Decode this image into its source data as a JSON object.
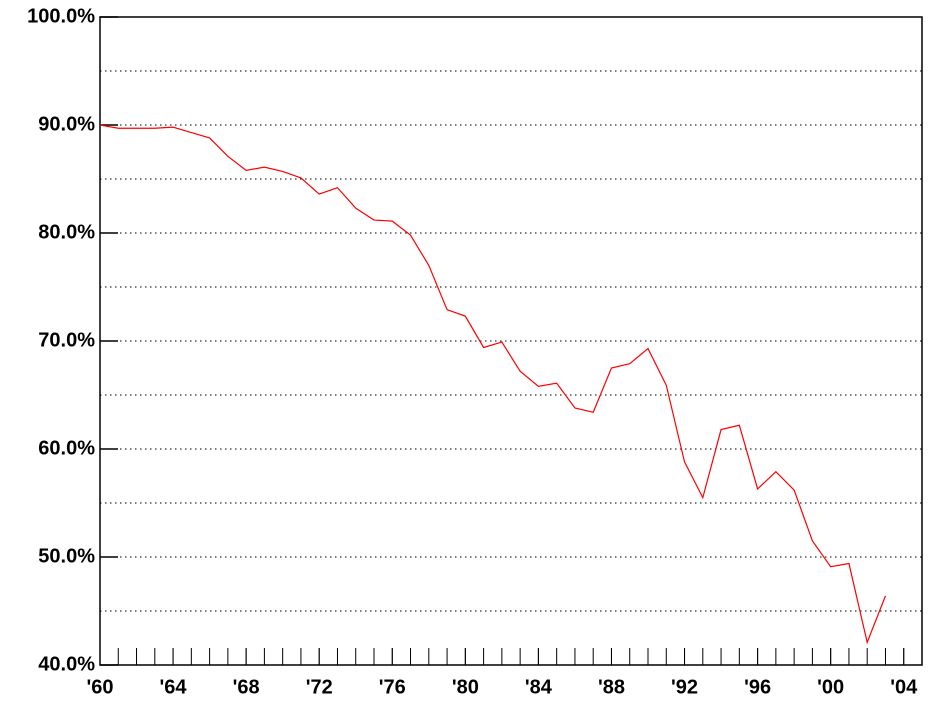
{
  "chart_data": {
    "type": "line",
    "color": "#ff0000",
    "x": [
      1960,
      1961,
      1962,
      1963,
      1964,
      1965,
      1966,
      1967,
      1968,
      1969,
      1970,
      1971,
      1972,
      1973,
      1974,
      1975,
      1976,
      1977,
      1978,
      1979,
      1980,
      1981,
      1982,
      1983,
      1984,
      1985,
      1986,
      1987,
      1988,
      1989,
      1990,
      1991,
      1992,
      1993,
      1994,
      1995,
      1996,
      1997,
      1998,
      1999,
      2000,
      2001,
      2002,
      2003
    ],
    "values": [
      90.0,
      89.7,
      89.7,
      89.7,
      89.8,
      89.3,
      88.8,
      87.1,
      85.8,
      86.1,
      85.7,
      85.1,
      83.6,
      84.2,
      82.3,
      81.2,
      81.1,
      79.8,
      77.0,
      72.9,
      72.3,
      69.4,
      69.9,
      67.2,
      65.8,
      66.1,
      63.8,
      63.4,
      67.5,
      67.9,
      69.3,
      65.9,
      58.8,
      55.5,
      61.8,
      62.2,
      56.3,
      57.9,
      56.2,
      51.5,
      49.1,
      49.4,
      42.1,
      46.4
    ],
    "xlim": [
      1960,
      2005
    ],
    "ylim": [
      40,
      100
    ],
    "xticks": [
      {
        "value": 1960,
        "label": "'60"
      },
      {
        "value": 1964,
        "label": "'64"
      },
      {
        "value": 1968,
        "label": "'68"
      },
      {
        "value": 1972,
        "label": "'72"
      },
      {
        "value": 1976,
        "label": "'76"
      },
      {
        "value": 1980,
        "label": "'80"
      },
      {
        "value": 1984,
        "label": "'84"
      },
      {
        "value": 1988,
        "label": "'88"
      },
      {
        "value": 1992,
        "label": "'92"
      },
      {
        "value": 1996,
        "label": "'96"
      },
      {
        "value": 2000,
        "label": "'00"
      },
      {
        "value": 2004,
        "label": "'04"
      }
    ],
    "xminorticks": [
      1961,
      1962,
      1963,
      1964,
      1965,
      1966,
      1967,
      1968,
      1969,
      1970,
      1971,
      1972,
      1973,
      1974,
      1975,
      1976,
      1977,
      1978,
      1979,
      1980,
      1981,
      1982,
      1983,
      1984,
      1985,
      1986,
      1987,
      1988,
      1989,
      1990,
      1991,
      1992,
      1993,
      1994,
      1995,
      1996,
      1997,
      1998,
      1999,
      2000,
      2001,
      2002,
      2003,
      2004
    ],
    "yticks": [
      {
        "value": 40,
        "label": "40.0%"
      },
      {
        "value": 50,
        "label": "50.0%"
      },
      {
        "value": 60,
        "label": "60.0%"
      },
      {
        "value": 70,
        "label": "70.0%"
      },
      {
        "value": 80,
        "label": "80.0%"
      },
      {
        "value": 90,
        "label": "90.0%"
      },
      {
        "value": 100,
        "label": "100.0%"
      }
    ],
    "yminorgrid": [
      45,
      55,
      65,
      75,
      85,
      95
    ],
    "grid": true
  }
}
